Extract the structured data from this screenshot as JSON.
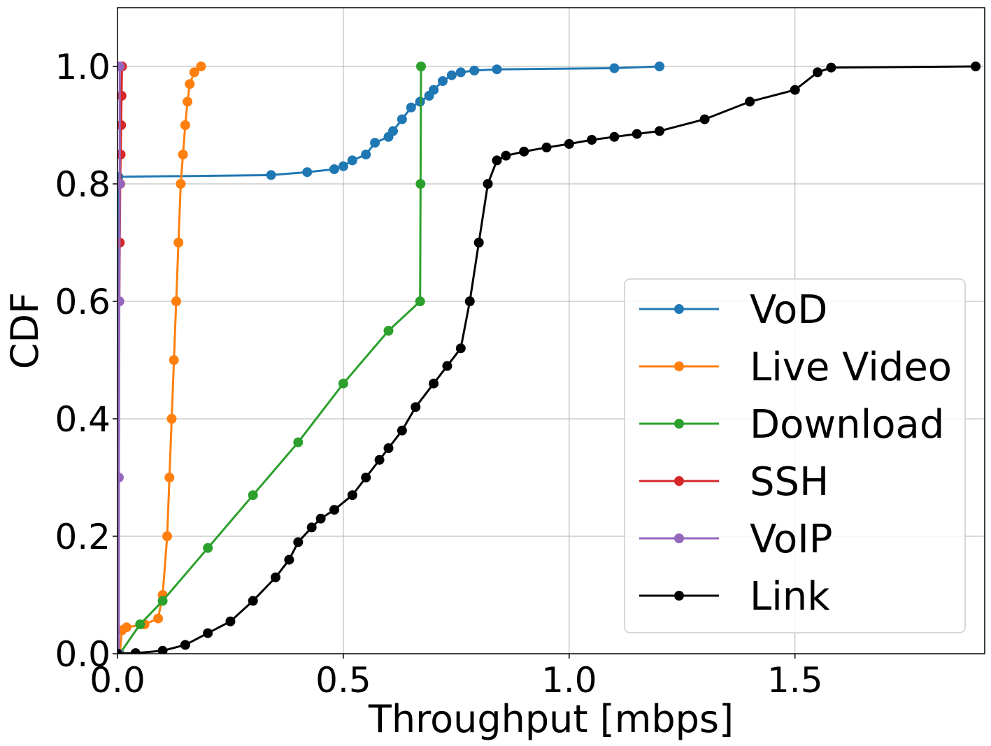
{
  "chart_data": {
    "type": "line",
    "title": "",
    "xlabel": "Throughput [mbps]",
    "ylabel": "CDF",
    "xlim": [
      0,
      1.92
    ],
    "ylim": [
      0,
      1.1
    ],
    "xticks": [
      0.0,
      0.5,
      1.0,
      1.5
    ],
    "xtick_labels": [
      "0.0",
      "0.5",
      "1.0",
      "1.5"
    ],
    "yticks": [
      0.0,
      0.2,
      0.4,
      0.6,
      0.8,
      1.0
    ],
    "ytick_labels": [
      "0.0",
      "0.2",
      "0.4",
      "0.6",
      "0.8",
      "1.0"
    ],
    "grid": true,
    "legend_position": "lower-right",
    "series": [
      {
        "name": "VoD",
        "color": "#1f77b4",
        "points": [
          [
            0.0,
            0.0
          ],
          [
            0.002,
            0.812
          ],
          [
            0.34,
            0.815
          ],
          [
            0.42,
            0.82
          ],
          [
            0.48,
            0.825
          ],
          [
            0.5,
            0.83
          ],
          [
            0.52,
            0.84
          ],
          [
            0.55,
            0.85
          ],
          [
            0.57,
            0.87
          ],
          [
            0.6,
            0.88
          ],
          [
            0.61,
            0.89
          ],
          [
            0.63,
            0.91
          ],
          [
            0.65,
            0.93
          ],
          [
            0.67,
            0.94
          ],
          [
            0.69,
            0.95
          ],
          [
            0.7,
            0.96
          ],
          [
            0.72,
            0.975
          ],
          [
            0.74,
            0.985
          ],
          [
            0.76,
            0.99
          ],
          [
            0.79,
            0.993
          ],
          [
            0.84,
            0.995
          ],
          [
            1.1,
            0.997
          ],
          [
            1.2,
            1.0
          ]
        ]
      },
      {
        "name": "Live Video",
        "color": "#ff7f0e",
        "points": [
          [
            0.005,
            0.0
          ],
          [
            0.01,
            0.04
          ],
          [
            0.02,
            0.045
          ],
          [
            0.06,
            0.05
          ],
          [
            0.09,
            0.06
          ],
          [
            0.1,
            0.1
          ],
          [
            0.11,
            0.2
          ],
          [
            0.115,
            0.3
          ],
          [
            0.12,
            0.4
          ],
          [
            0.125,
            0.5
          ],
          [
            0.13,
            0.6
          ],
          [
            0.135,
            0.7
          ],
          [
            0.14,
            0.8
          ],
          [
            0.145,
            0.85
          ],
          [
            0.15,
            0.9
          ],
          [
            0.155,
            0.94
          ],
          [
            0.16,
            0.97
          ],
          [
            0.17,
            0.99
          ],
          [
            0.185,
            1.0
          ]
        ]
      },
      {
        "name": "Download",
        "color": "#2ca02c",
        "points": [
          [
            0.005,
            0.0
          ],
          [
            0.05,
            0.05
          ],
          [
            0.1,
            0.09
          ],
          [
            0.2,
            0.18
          ],
          [
            0.3,
            0.27
          ],
          [
            0.4,
            0.36
          ],
          [
            0.5,
            0.46
          ],
          [
            0.6,
            0.55
          ],
          [
            0.67,
            0.6
          ],
          [
            0.671,
            0.8
          ],
          [
            0.672,
            1.0
          ]
        ]
      },
      {
        "name": "SSH",
        "color": "#d62728",
        "points": [
          [
            0.004,
            0.6
          ],
          [
            0.005,
            0.7
          ],
          [
            0.006,
            0.8
          ],
          [
            0.007,
            0.85
          ],
          [
            0.008,
            0.9
          ],
          [
            0.009,
            0.95
          ],
          [
            0.01,
            1.0
          ]
        ]
      },
      {
        "name": "VoIP",
        "color": "#9467bd",
        "points": [
          [
            0.003,
            0.0
          ],
          [
            0.003,
            0.3
          ],
          [
            0.004,
            0.6
          ],
          [
            0.005,
            0.8
          ],
          [
            0.005,
            1.0
          ]
        ]
      },
      {
        "name": "Link",
        "color": "#000000",
        "points": [
          [
            0.0,
            0.0
          ],
          [
            0.04,
            0.001
          ],
          [
            0.1,
            0.005
          ],
          [
            0.15,
            0.015
          ],
          [
            0.2,
            0.035
          ],
          [
            0.25,
            0.055
          ],
          [
            0.3,
            0.09
          ],
          [
            0.35,
            0.13
          ],
          [
            0.38,
            0.16
          ],
          [
            0.4,
            0.19
          ],
          [
            0.43,
            0.215
          ],
          [
            0.45,
            0.23
          ],
          [
            0.48,
            0.245
          ],
          [
            0.52,
            0.27
          ],
          [
            0.55,
            0.3
          ],
          [
            0.58,
            0.33
          ],
          [
            0.6,
            0.35
          ],
          [
            0.63,
            0.38
          ],
          [
            0.66,
            0.42
          ],
          [
            0.7,
            0.46
          ],
          [
            0.73,
            0.49
          ],
          [
            0.76,
            0.52
          ],
          [
            0.78,
            0.6
          ],
          [
            0.8,
            0.7
          ],
          [
            0.82,
            0.8
          ],
          [
            0.84,
            0.84
          ],
          [
            0.86,
            0.848
          ],
          [
            0.9,
            0.855
          ],
          [
            0.95,
            0.862
          ],
          [
            1.0,
            0.868
          ],
          [
            1.05,
            0.875
          ],
          [
            1.1,
            0.88
          ],
          [
            1.15,
            0.885
          ],
          [
            1.2,
            0.89
          ],
          [
            1.3,
            0.91
          ],
          [
            1.4,
            0.94
          ],
          [
            1.5,
            0.96
          ],
          [
            1.55,
            0.99
          ],
          [
            1.58,
            0.998
          ],
          [
            1.9,
            1.0
          ]
        ]
      }
    ]
  }
}
